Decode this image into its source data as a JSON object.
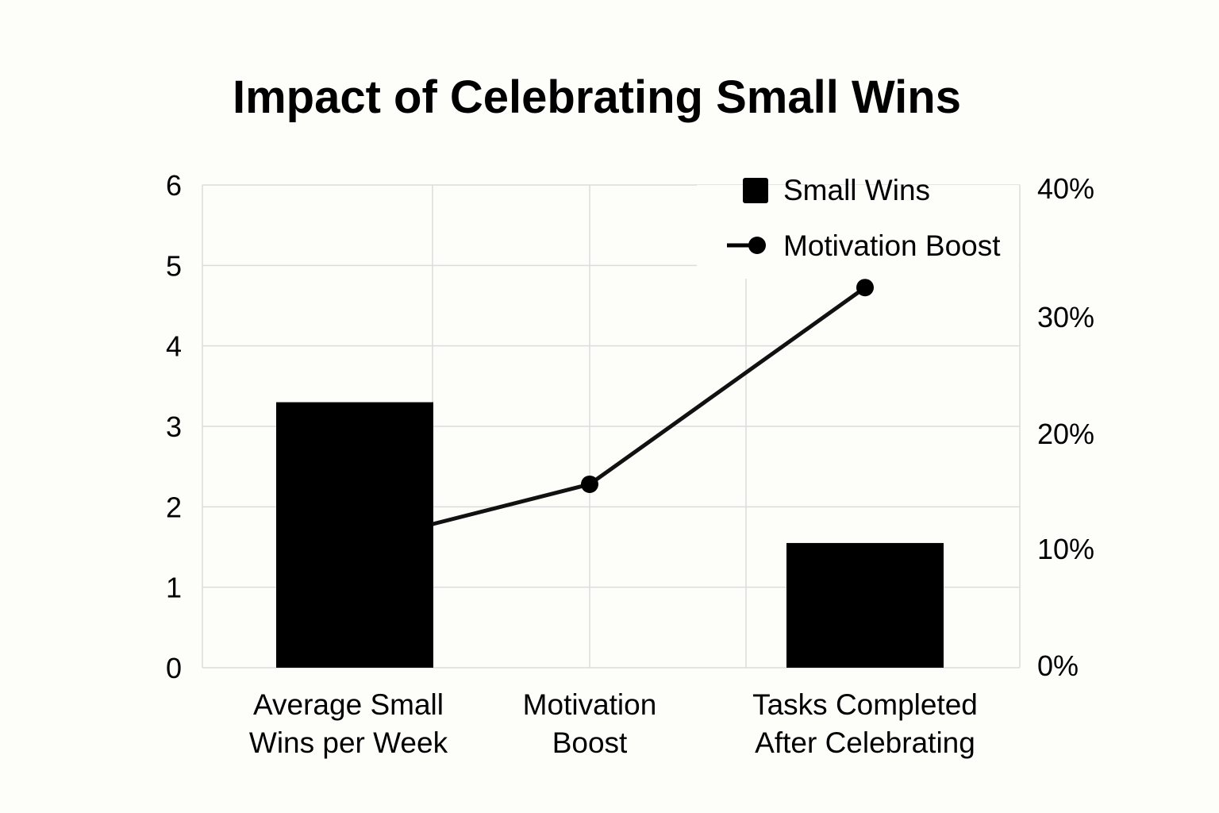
{
  "chart_data": {
    "type": "bar",
    "title": "Impact of Celebrating Small Wins",
    "categories": [
      [
        "Average Small",
        "Wins per Week"
      ],
      [
        "Motivation",
        "Boost"
      ],
      [
        "Tasks Completed",
        "After Celebrating"
      ]
    ],
    "series": [
      {
        "name": "Small Wins",
        "type": "bar",
        "axis": "left",
        "values": [
          3.3,
          null,
          1.55
        ]
      },
      {
        "name": "Motivation Boost",
        "type": "line",
        "axis": "right",
        "values": [
          null,
          15.2,
          31.5
        ],
        "segment_from_left_edge": 11.9
      }
    ],
    "y_left": {
      "ticks": [
        "0",
        "1",
        "2",
        "3",
        "4",
        "5",
        "6"
      ],
      "ylim": [
        0,
        6
      ]
    },
    "y_right": {
      "ticks": [
        "0%",
        "10%",
        "20%",
        "30%",
        "40%"
      ],
      "ylim": [
        0,
        40
      ]
    },
    "grid": true,
    "legend": {
      "position": "top-right"
    },
    "colors": {
      "bar": "#000000",
      "line": "#111111",
      "grid": "#dcdcdc",
      "background": "#fdfdfa"
    }
  }
}
